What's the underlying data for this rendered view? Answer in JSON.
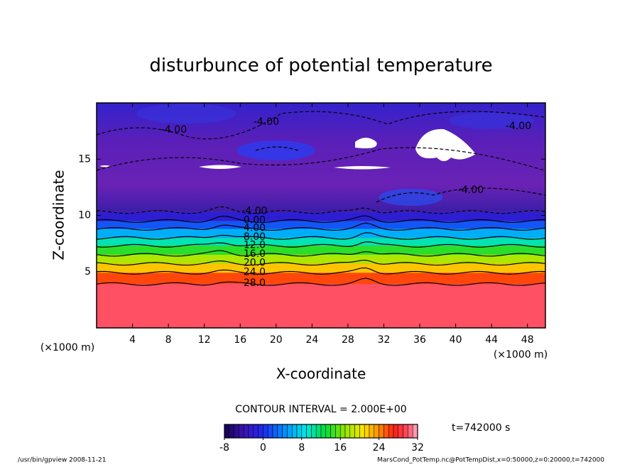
{
  "chart_data": {
    "type": "contour",
    "title": "disturbunce of potential temperature",
    "x_label": "X-coordinate",
    "y_label": "Z-coordinate",
    "x_unit": "(×1000 m)",
    "y_unit": "(×1000 m)",
    "xlim": [
      0,
      50
    ],
    "xticks": [
      4,
      8,
      12,
      16,
      20,
      24,
      28,
      32,
      36,
      40,
      44,
      48
    ],
    "ylim": [
      0,
      20
    ],
    "yticks": [
      5,
      10,
      15
    ],
    "contour_levels": [
      28,
      24,
      20,
      16,
      12,
      8,
      4,
      0,
      -4
    ],
    "contour_heights": [
      3.9,
      4.9,
      5.7,
      6.5,
      7.3,
      8.0,
      8.8,
      9.5,
      10.3
    ],
    "value_labels": [
      "28.0",
      "24.0",
      "20.0",
      "16.0",
      "12.0",
      "8.00",
      "4.00",
      "0.00",
      "-4.00"
    ],
    "upper_labels": [
      "-4.00",
      "-4.00",
      "-4.00",
      "-4.00"
    ],
    "contour_interval": "CONTOUR INTERVAL = 2.000E+00",
    "time_label": "t=742000 s",
    "colorbar": {
      "lim": [
        -8,
        32
      ],
      "ticks": [
        -8,
        0,
        8,
        16,
        24,
        32
      ]
    },
    "footer_left": "/usr/bin/gpview   2008-11-21",
    "footer_right": "MarsCond_PotTemp.nc@PotTempDist,x=0:50000,z=0:20000,t=742000"
  }
}
